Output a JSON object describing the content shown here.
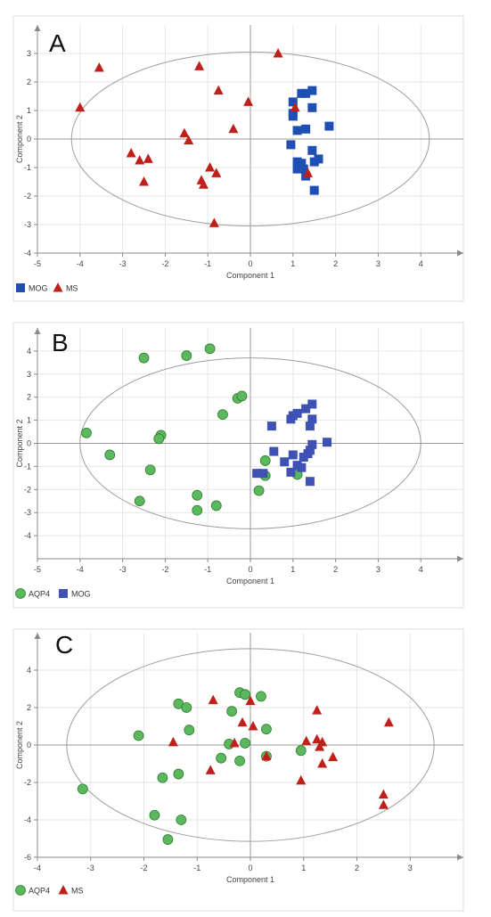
{
  "colors": {
    "mog": "#1f4fb4",
    "mog_b": "#3f51b5",
    "ms": "#c0201a",
    "aqp4": "#5cb85c",
    "aqp4_stroke": "#2e7d32",
    "axis": "#8a8a8a",
    "grid": "#e6e6e6"
  },
  "chart_data": [
    {
      "type": "scatter",
      "panel_label": "A",
      "xlabel": "Component 1",
      "ylabel": "Component 2",
      "xlim": [
        -5,
        5
      ],
      "ylim": [
        -4,
        4
      ],
      "xticks": [
        -5,
        -4,
        -3,
        -2,
        -1,
        0,
        1,
        2,
        3,
        4
      ],
      "yticks": [
        -4,
        -3,
        -2,
        -1,
        0,
        1,
        2,
        3
      ],
      "ellipse": {
        "cx": 0,
        "cy": 0,
        "rx": 4.2,
        "ry": 3.05
      },
      "legend_position": "bottom-left",
      "series": [
        {
          "name": "MOG",
          "marker": "square",
          "color": "#1f4fb4",
          "points": [
            [
              1.0,
              1.3
            ],
            [
              1.2,
              1.6
            ],
            [
              1.3,
              1.6
            ],
            [
              1.45,
              1.7
            ],
            [
              1.45,
              1.1
            ],
            [
              1.0,
              0.9
            ],
            [
              1.0,
              0.8
            ],
            [
              1.1,
              0.3
            ],
            [
              1.3,
              0.35
            ],
            [
              1.85,
              0.45
            ],
            [
              0.95,
              -0.2
            ],
            [
              1.45,
              -0.4
            ],
            [
              1.6,
              -0.7
            ],
            [
              1.5,
              -0.8
            ],
            [
              1.1,
              -0.8
            ],
            [
              1.2,
              -0.85
            ],
            [
              1.15,
              -0.9
            ],
            [
              1.1,
              -1.05
            ],
            [
              1.25,
              -1.05
            ],
            [
              1.3,
              -1.3
            ],
            [
              1.5,
              -1.8
            ]
          ]
        },
        {
          "name": "MS",
          "marker": "triangle",
          "color": "#c0201a",
          "points": [
            [
              -4.0,
              1.1
            ],
            [
              -3.55,
              2.5
            ],
            [
              -2.8,
              -0.5
            ],
            [
              -2.6,
              -0.75
            ],
            [
              -2.4,
              -0.7
            ],
            [
              -2.5,
              -1.5
            ],
            [
              -1.55,
              0.2
            ],
            [
              -1.45,
              -0.05
            ],
            [
              -1.2,
              2.55
            ],
            [
              -0.75,
              1.7
            ],
            [
              -0.4,
              0.35
            ],
            [
              -0.05,
              1.3
            ],
            [
              -0.95,
              -1.0
            ],
            [
              -0.8,
              -1.2
            ],
            [
              -1.15,
              -1.45
            ],
            [
              -1.1,
              -1.6
            ],
            [
              -0.85,
              -2.95
            ],
            [
              0.65,
              3.0
            ],
            [
              1.05,
              1.1
            ],
            [
              1.35,
              -1.2
            ]
          ]
        }
      ]
    },
    {
      "type": "scatter",
      "panel_label": "B",
      "xlabel": "Component 1",
      "ylabel": "Component 2",
      "xlim": [
        -5,
        5
      ],
      "ylim": [
        -5,
        5
      ],
      "xticks": [
        -5,
        -4,
        -3,
        -2,
        -1,
        0,
        1,
        2,
        3,
        4
      ],
      "yticks": [
        -4,
        -3,
        -2,
        -1,
        0,
        1,
        2,
        3,
        4
      ],
      "ellipse": {
        "cx": 0,
        "cy": 0,
        "rx": 4.0,
        "ry": 3.7
      },
      "legend_position": "bottom-left",
      "series": [
        {
          "name": "AQP4",
          "marker": "circle",
          "color": "#5cb85c",
          "points": [
            [
              -2.5,
              3.7
            ],
            [
              -1.5,
              3.8
            ],
            [
              -0.95,
              4.1
            ],
            [
              -0.3,
              1.95
            ],
            [
              -0.2,
              2.05
            ],
            [
              -0.65,
              1.25
            ],
            [
              -3.85,
              0.45
            ],
            [
              -2.1,
              0.35
            ],
            [
              -2.15,
              0.2
            ],
            [
              -3.3,
              -0.5
            ],
            [
              -2.35,
              -1.15
            ],
            [
              -2.6,
              -2.5
            ],
            [
              -1.25,
              -2.25
            ],
            [
              -1.25,
              -2.9
            ],
            [
              -0.8,
              -2.7
            ],
            [
              0.35,
              -0.75
            ],
            [
              0.35,
              -1.4
            ],
            [
              0.2,
              -2.05
            ],
            [
              1.1,
              -1.35
            ]
          ]
        },
        {
          "name": "MOG",
          "marker": "square",
          "color": "#3f51b5",
          "points": [
            [
              1.45,
              1.7
            ],
            [
              1.3,
              1.5
            ],
            [
              1.1,
              1.3
            ],
            [
              1.0,
              1.2
            ],
            [
              0.95,
              1.05
            ],
            [
              1.45,
              1.05
            ],
            [
              0.5,
              0.75
            ],
            [
              1.4,
              0.75
            ],
            [
              1.8,
              0.05
            ],
            [
              1.45,
              -0.05
            ],
            [
              1.4,
              -0.3
            ],
            [
              1.35,
              -0.45
            ],
            [
              1.25,
              -0.6
            ],
            [
              0.55,
              -0.35
            ],
            [
              1.0,
              -0.5
            ],
            [
              0.8,
              -0.8
            ],
            [
              1.1,
              -0.95
            ],
            [
              1.2,
              -1.05
            ],
            [
              0.95,
              -1.25
            ],
            [
              0.15,
              -1.3
            ],
            [
              0.3,
              -1.3
            ],
            [
              1.4,
              -1.65
            ]
          ]
        }
      ]
    },
    {
      "type": "scatter",
      "panel_label": "C",
      "xlabel": "Component 1",
      "ylabel": "Component 2",
      "xlim": [
        -4,
        4
      ],
      "ylim": [
        -6,
        6
      ],
      "xticks": [
        -4,
        -3,
        -2,
        -1,
        0,
        1,
        2,
        3
      ],
      "yticks": [
        -6,
        -4,
        -2,
        0,
        2,
        4
      ],
      "ellipse": {
        "cx": 0,
        "cy": 0,
        "rx": 3.45,
        "ry": 5.15
      },
      "legend_position": "bottom-left",
      "series": [
        {
          "name": "AQP4",
          "marker": "circle",
          "color": "#5cb85c",
          "points": [
            [
              -1.35,
              2.2
            ],
            [
              -1.2,
              2.0
            ],
            [
              -0.2,
              2.8
            ],
            [
              -0.1,
              2.7
            ],
            [
              0.2,
              2.6
            ],
            [
              -0.35,
              1.8
            ],
            [
              -1.15,
              0.8
            ],
            [
              -2.1,
              0.5
            ],
            [
              -0.4,
              0.05
            ],
            [
              -0.1,
              0.1
            ],
            [
              -0.55,
              -0.7
            ],
            [
              -0.2,
              -0.85
            ],
            [
              0.3,
              0.85
            ],
            [
              0.3,
              -0.6
            ],
            [
              0.95,
              -0.3
            ],
            [
              -1.65,
              -1.75
            ],
            [
              -1.35,
              -1.55
            ],
            [
              -3.15,
              -2.35
            ],
            [
              -1.8,
              -3.75
            ],
            [
              -1.3,
              -4.0
            ],
            [
              -1.55,
              -5.05
            ]
          ]
        },
        {
          "name": "MS",
          "marker": "triangle",
          "color": "#c0201a",
          "points": [
            [
              -0.7,
              2.4
            ],
            [
              0.0,
              2.35
            ],
            [
              1.25,
              1.85
            ],
            [
              2.6,
              1.2
            ],
            [
              -0.15,
              1.2
            ],
            [
              0.05,
              1.0
            ],
            [
              -1.45,
              0.15
            ],
            [
              -0.3,
              0.1
            ],
            [
              1.05,
              0.2
            ],
            [
              1.25,
              0.3
            ],
            [
              1.35,
              0.15
            ],
            [
              1.3,
              -0.1
            ],
            [
              1.55,
              -0.65
            ],
            [
              1.35,
              -1.0
            ],
            [
              0.3,
              -0.6
            ],
            [
              -0.75,
              -1.35
            ],
            [
              0.95,
              -1.9
            ],
            [
              2.5,
              -2.65
            ],
            [
              2.5,
              -3.2
            ]
          ]
        }
      ]
    }
  ]
}
